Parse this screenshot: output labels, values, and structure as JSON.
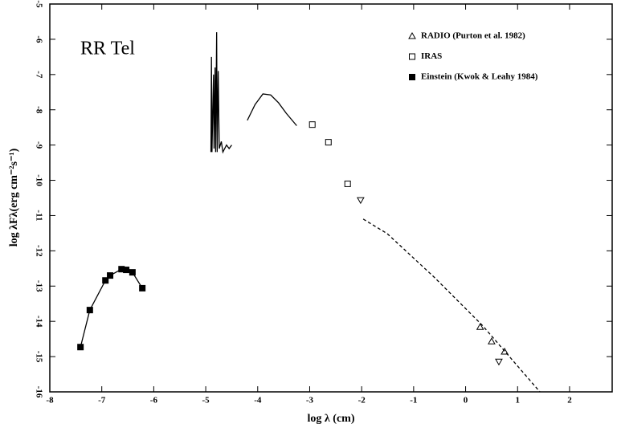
{
  "chart_data": {
    "type": "scatter",
    "annotation": "RR Tel",
    "x_label": "log λ (cm)",
    "y_label": "log λFλ(erg cm⁻²s⁻¹)",
    "xlim": [
      -8,
      2.82
    ],
    "ylim": [
      -16,
      -5
    ],
    "xticks": [
      -8,
      -7,
      -6,
      -5,
      -4,
      -3,
      -2,
      -1,
      0,
      1,
      2
    ],
    "yticks": [
      -5,
      -6,
      -7,
      -8,
      -9,
      -10,
      -11,
      -12,
      -13,
      -14,
      -15,
      -16
    ],
    "legend": "upper right",
    "series": [
      {
        "name": "RADIO (Purton et al. 1982)",
        "color": "#000000",
        "marker": "triangle",
        "line": "none",
        "x": [
          0.28,
          0.5,
          0.75,
          0.64,
          -2.02
        ],
        "values": [
          -14.16,
          -14.57,
          -14.86,
          -15.14,
          -10.56
        ],
        "direction": [
          "up",
          "up",
          "up",
          "down",
          "down"
        ]
      },
      {
        "name": "IRAS",
        "color": "#000000",
        "marker": "square-open",
        "line": "none",
        "x": [
          -2.95,
          -2.64,
          -2.27
        ],
        "values": [
          -8.42,
          -8.92,
          -10.1
        ]
      },
      {
        "name": "Einstein (Kwok & Leahy 1984)",
        "color": "#000000",
        "marker": "square-filled",
        "line": "solid",
        "x": [
          -7.41,
          -7.23,
          -6.93,
          -6.84,
          -6.62,
          -6.53,
          -6.41,
          -6.22
        ],
        "values": [
          -14.73,
          -13.68,
          -12.84,
          -12.7,
          -12.52,
          -12.54,
          -12.61,
          -13.06
        ]
      },
      {
        "color": "#000000",
        "marker": "none",
        "line": "solid",
        "x": [
          -4.9,
          -4.89,
          -4.88,
          -4.85,
          -4.84,
          -4.82,
          -4.81,
          -4.79,
          -4.78,
          -4.76,
          -4.74,
          -4.7,
          -4.67,
          -4.6,
          -4.55,
          -4.5
        ],
        "values": [
          -9.2,
          -6.5,
          -9.2,
          -7.0,
          -9.1,
          -6.8,
          -9.2,
          -5.8,
          -9.2,
          -6.9,
          -9.1,
          -8.9,
          -9.2,
          -9.0,
          -9.1,
          -9.0
        ]
      },
      {
        "color": "#000000",
        "marker": "none",
        "line": "solid",
        "x": [
          -4.2,
          -4.05,
          -3.9,
          -3.75,
          -3.6,
          -3.45,
          -3.25
        ],
        "values": [
          -8.3,
          -7.85,
          -7.55,
          -7.58,
          -7.8,
          -8.1,
          -8.45
        ]
      },
      {
        "color": "#000000",
        "marker": "none",
        "line": "dashed",
        "x": [
          -1.97,
          -1.51,
          -0.61,
          0.32,
          1.43
        ],
        "values": [
          -11.1,
          -11.51,
          -12.74,
          -14.11,
          -16.0
        ]
      }
    ]
  }
}
